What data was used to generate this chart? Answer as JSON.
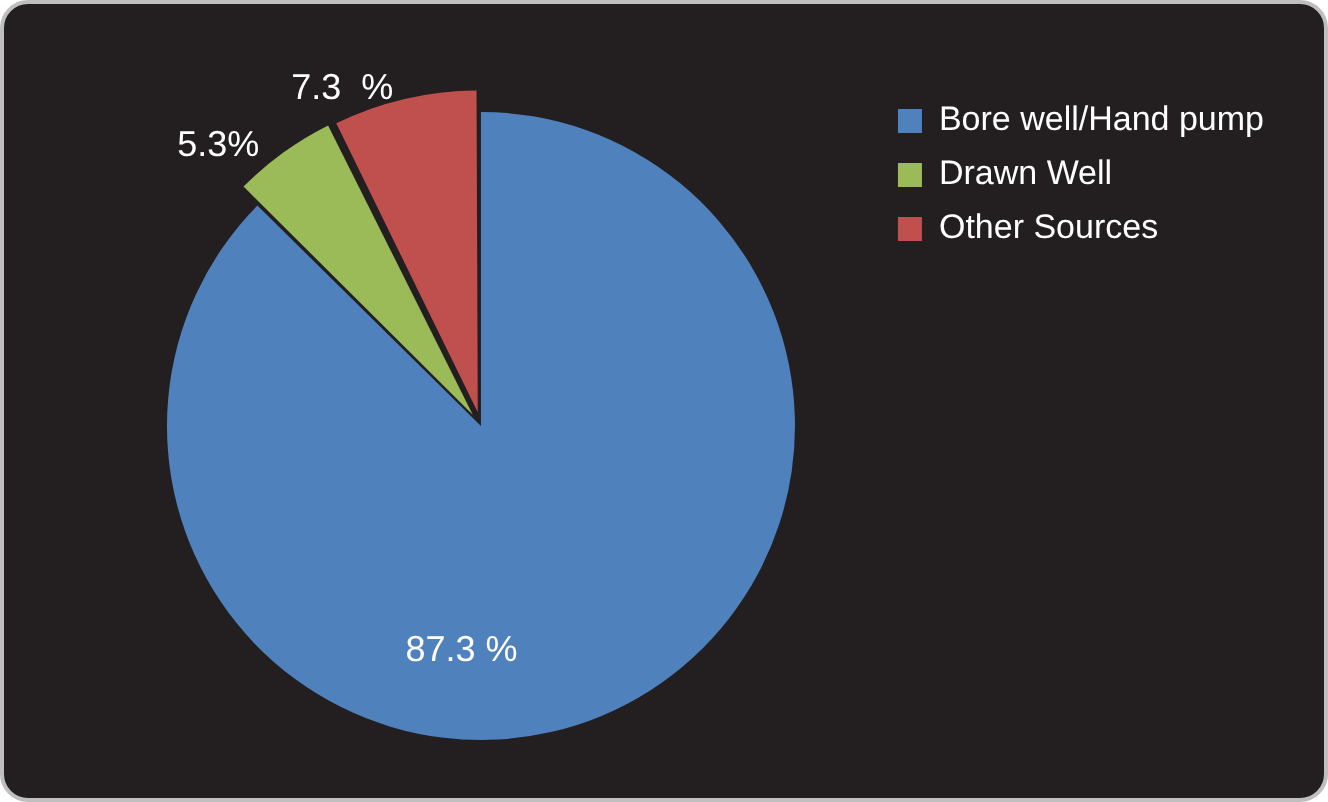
{
  "chart_data": {
    "type": "pie",
    "categories": [
      "Bore well/Hand pump",
      "Drawn Well",
      "Other Sources"
    ],
    "values": [
      87.3,
      5.3,
      7.3
    ],
    "colors": [
      "#4f81bd",
      "#9bbb59",
      "#c0504d"
    ],
    "value_labels": [
      "87.3 %",
      "5.3%",
      "7.3  %"
    ],
    "legend": "top right"
  }
}
